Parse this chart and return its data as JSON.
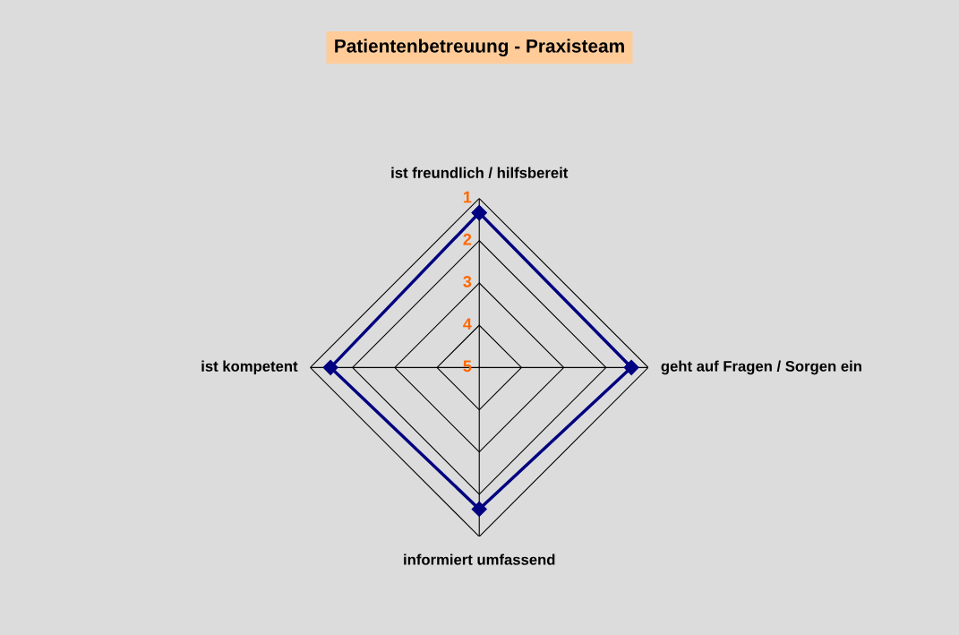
{
  "chart_data": {
    "type": "radar",
    "title": "Patientenbetreuung - Praxisteam",
    "categories": [
      "ist freundlich / hilfsbereit",
      "geht auf Fragen / Sorgen ein",
      "informiert umfassend",
      "ist kompetent"
    ],
    "series": [
      {
        "color": "#000080",
        "values": [
          1.34,
          1.4,
          1.65,
          1.48
        ]
      }
    ],
    "ylim": [
      5,
      1
    ],
    "yticks": [
      1,
      2,
      3,
      4,
      5
    ],
    "marker": "diamond",
    "grid": true,
    "legend": false
  }
}
